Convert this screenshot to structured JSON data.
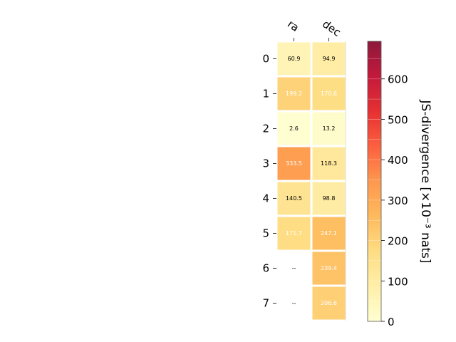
{
  "chart_data": {
    "type": "heatmap",
    "columns": [
      "ra",
      "dec"
    ],
    "rows": [
      "0",
      "1",
      "2",
      "3",
      "4",
      "5",
      "6",
      "7"
    ],
    "values": [
      [
        60.9,
        94.9
      ],
      [
        199.2,
        170.6
      ],
      [
        2.6,
        13.2
      ],
      [
        333.5,
        118.3
      ],
      [
        140.5,
        98.8
      ],
      [
        171.7,
        247.1
      ],
      [
        null,
        239.4
      ],
      [
        null,
        206.6
      ]
    ],
    "cell_labels": [
      [
        "60.9",
        "94.9"
      ],
      [
        "199.2",
        "170.6"
      ],
      [
        "2.6",
        "13.2"
      ],
      [
        "333.5",
        "118.3"
      ],
      [
        "140.5",
        "98.8"
      ],
      [
        "171.7",
        "247.1"
      ],
      [
        "--",
        "239.4"
      ],
      [
        "--",
        "206.6"
      ]
    ],
    "colorbar": {
      "label": "JS-divergence [×10⁻³ nats]",
      "range": [
        0,
        693
      ],
      "ticks": [
        0,
        100,
        200,
        300,
        400,
        500,
        600
      ],
      "colormap": "YlOrRd"
    }
  }
}
